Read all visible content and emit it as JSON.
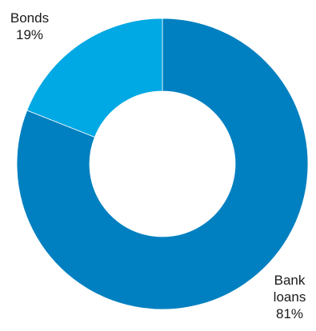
{
  "chart_data": {
    "type": "pie",
    "variant": "donut",
    "title": "",
    "slices": [
      {
        "name": "Bank loans",
        "label_lines": [
          "Bank",
          "loans"
        ],
        "pct_label": "81%",
        "value": 81,
        "color": "#0080c0"
      },
      {
        "name": "Bonds",
        "label_lines": [
          "Bonds"
        ],
        "pct_label": "19%",
        "value": 19,
        "color": "#00a8e4"
      }
    ],
    "legend": "none"
  }
}
